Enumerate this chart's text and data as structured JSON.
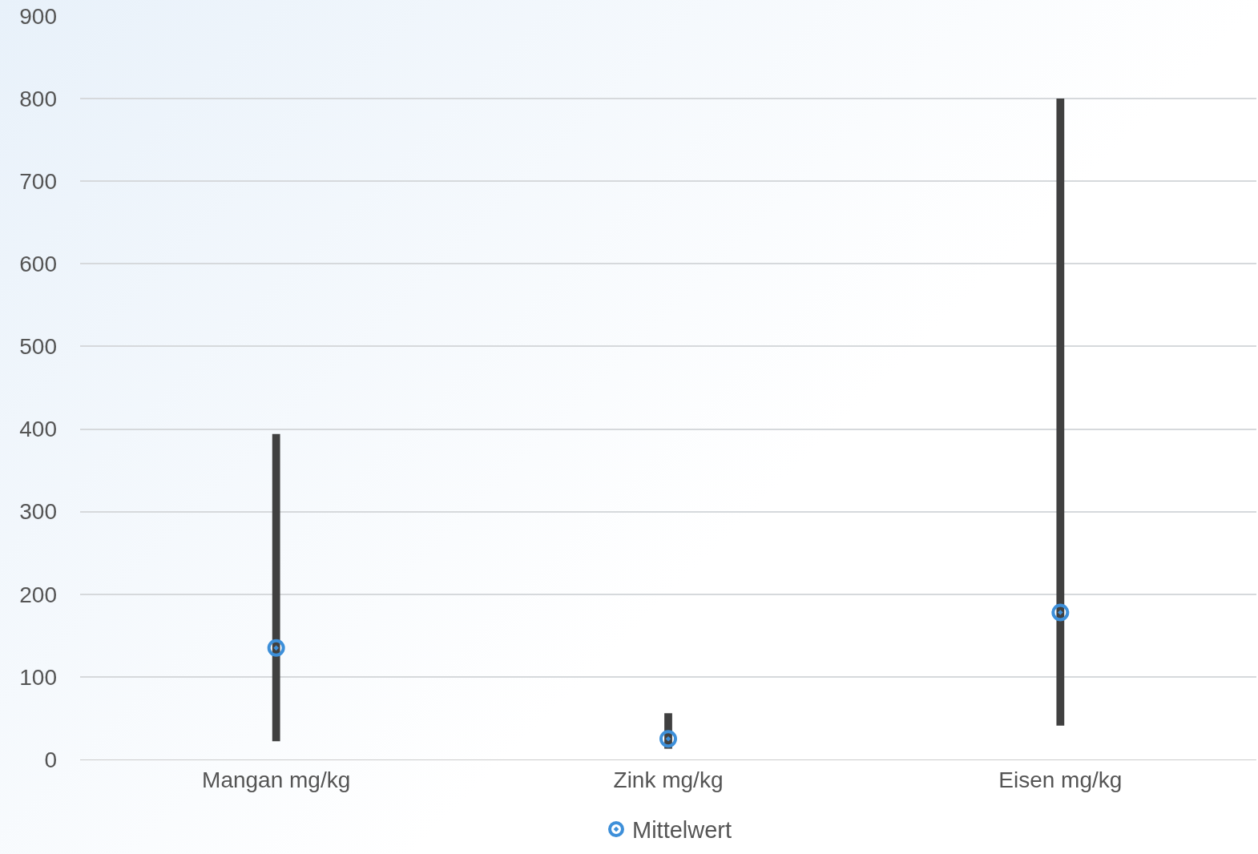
{
  "chart_data": {
    "type": "bar",
    "categories": [
      "Mangan mg/kg",
      "Zink mg/kg",
      "Eisen mg/kg"
    ],
    "series": [
      {
        "type": "bar",
        "color": "#404040",
        "base": [
          22,
          13,
          41
        ],
        "values": [
          372,
          43,
          759
        ]
      },
      {
        "type": "scatter",
        "name": "Mittelwert",
        "color": "#3d8fd9",
        "x": [
          "Mangan mg/kg",
          "Zink mg/kg",
          "Eisen mg/kg"
        ],
        "values": [
          135,
          25,
          178
        ]
      }
    ],
    "ylim": [
      0,
      900
    ],
    "yticks": [
      0,
      100,
      200,
      300,
      400,
      500,
      600,
      700,
      800,
      900
    ],
    "grid": "y",
    "legend": "bottom",
    "marker": "circle"
  }
}
